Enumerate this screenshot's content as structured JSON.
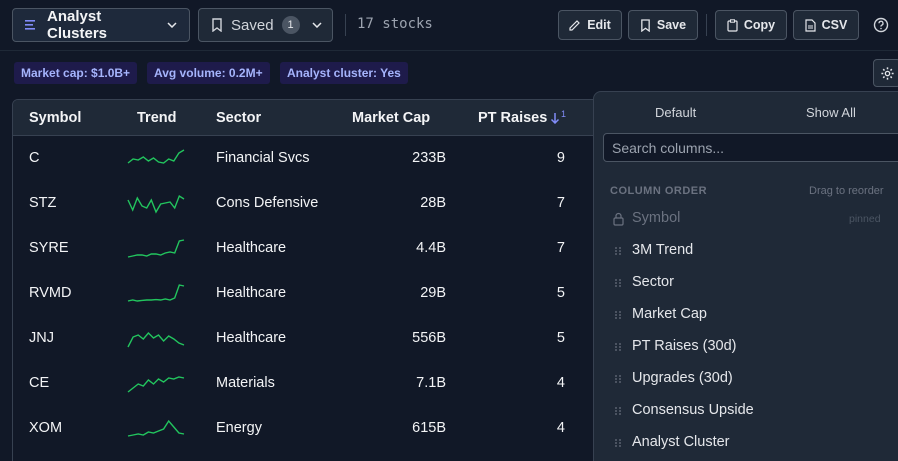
{
  "toolbar": {
    "view_label": "Analyst Clusters",
    "saved_label": "Saved",
    "saved_count": "1",
    "stock_count": "17 stocks",
    "edit_label": "Edit",
    "save_label": "Save",
    "copy_label": "Copy",
    "csv_label": "CSV"
  },
  "filters": [
    "Market cap: $1.0B+",
    "Avg volume: 0.2M+",
    "Analyst cluster: Yes"
  ],
  "table": {
    "headers": {
      "symbol": "Symbol",
      "trend": "Trend",
      "sector": "Sector",
      "market_cap": "Market Cap",
      "pt_raises": "PT Raises",
      "sort_rank": "1"
    },
    "rows": [
      {
        "symbol": "C",
        "sector": "Financial Svcs",
        "market_cap": "233B",
        "pt_raises": "9",
        "trend": [
          0.3,
          0.5,
          0.45,
          0.6,
          0.4,
          0.55,
          0.35,
          0.3,
          0.5,
          0.4,
          0.8,
          0.95
        ]
      },
      {
        "symbol": "STZ",
        "sector": "Cons Defensive",
        "market_cap": "28B",
        "pt_raises": "7",
        "trend": [
          0.7,
          0.2,
          0.8,
          0.4,
          0.3,
          0.7,
          0.1,
          0.5,
          0.55,
          0.6,
          0.3,
          0.9,
          0.75
        ]
      },
      {
        "symbol": "SYRE",
        "sector": "Healthcare",
        "market_cap": "4.4B",
        "pt_raises": "7",
        "trend": [
          0.1,
          0.15,
          0.2,
          0.2,
          0.15,
          0.25,
          0.25,
          0.2,
          0.3,
          0.35,
          0.3,
          0.9,
          0.95
        ]
      },
      {
        "symbol": "RVMD",
        "sector": "Healthcare",
        "market_cap": "29B",
        "pt_raises": "5",
        "trend": [
          0.15,
          0.2,
          0.15,
          0.18,
          0.2,
          0.2,
          0.22,
          0.2,
          0.25,
          0.2,
          0.3,
          0.95,
          0.9
        ]
      },
      {
        "symbol": "JNJ",
        "sector": "Healthcare",
        "market_cap": "556B",
        "pt_raises": "5",
        "trend": [
          0.1,
          0.6,
          0.7,
          0.5,
          0.8,
          0.55,
          0.7,
          0.4,
          0.65,
          0.5,
          0.3,
          0.2
        ]
      },
      {
        "symbol": "CE",
        "sector": "Materials",
        "market_cap": "7.1B",
        "pt_raises": "4",
        "trend": [
          0.1,
          0.3,
          0.5,
          0.4,
          0.7,
          0.5,
          0.75,
          0.6,
          0.8,
          0.75,
          0.85,
          0.8
        ]
      },
      {
        "symbol": "XOM",
        "sector": "Energy",
        "market_cap": "615B",
        "pt_raises": "4",
        "trend": [
          0.15,
          0.2,
          0.25,
          0.2,
          0.35,
          0.3,
          0.4,
          0.5,
          0.9,
          0.6,
          0.3,
          0.25
        ]
      }
    ]
  },
  "column_panel": {
    "tab_default": "Default",
    "tab_show_all": "Show All",
    "search_placeholder": "Search columns...",
    "section_title": "COLUMN ORDER",
    "drag_hint": "Drag to reorder",
    "pinned_tag": "pinned",
    "columns": [
      "Symbol",
      "3M Trend",
      "Sector",
      "Market Cap",
      "PT Raises (30d)",
      "Upgrades (30d)",
      "Consensus Upside",
      "Analyst Cluster"
    ]
  },
  "colors": {
    "sparkline": "#22c55e",
    "accent": "#818cf8"
  },
  "icons": {
    "view": "list-icon",
    "saved": "bookmark-icon",
    "edit": "edit-icon",
    "save": "bookmark-icon",
    "copy": "clipboard-icon",
    "csv": "file-icon",
    "help": "question-icon",
    "settings": "gear-icon",
    "sort": "arrow-down-icon",
    "pinned": "lock-icon",
    "drag": "grip-icon"
  }
}
